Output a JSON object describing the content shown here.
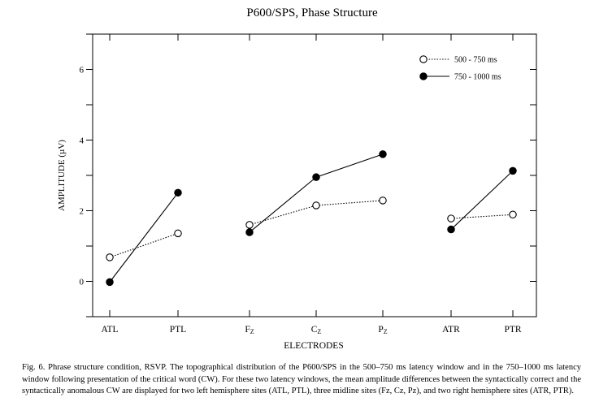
{
  "chart_data": {
    "type": "line",
    "title": "P600/SPS, Phase Structure",
    "xlabel": "ELECTRODES",
    "ylabel": "AMPLITUDE (µV)",
    "ylim": [
      -1,
      7
    ],
    "yticks": [
      0,
      2,
      4,
      6
    ],
    "categories": [
      {
        "main": "ATL",
        "sub": ""
      },
      {
        "main": "PTL",
        "sub": ""
      },
      {
        "main": "F",
        "sub": "Z"
      },
      {
        "main": "C",
        "sub": "Z"
      },
      {
        "main": "P",
        "sub": "Z"
      },
      {
        "main": "ATR",
        "sub": ""
      },
      {
        "main": "PTR",
        "sub": ""
      }
    ],
    "groups": [
      [
        0,
        1
      ],
      [
        2,
        3,
        4
      ],
      [
        5,
        6
      ]
    ],
    "legend_position": "top-right",
    "grid": false,
    "series": [
      {
        "name": "500 - 750 ms",
        "marker": "open-circle",
        "line": "dotted",
        "values": [
          0.68,
          1.36,
          1.6,
          2.15,
          2.29,
          1.78,
          1.89
        ]
      },
      {
        "name": "750 - 1000 ms",
        "marker": "filled-circle",
        "line": "solid",
        "values": [
          -0.02,
          2.51,
          1.39,
          2.95,
          3.6,
          1.47,
          3.13
        ]
      }
    ]
  },
  "caption": "Fig. 6. Phrase structure condition, RSVP. The topographical distribution of the P600/SPS in the 500–750 ms latency window and in the 750–1000 ms latency window following presentation of the critical word (CW). For these two latency windows, the mean amplitude differences between the syntactically correct and the syntactically anomalous CW are displayed for two left hemisphere sites (ATL, PTL), three midline sites (Fz, Cz, Pz), and two right hemisphere sites (ATR, PTR)."
}
